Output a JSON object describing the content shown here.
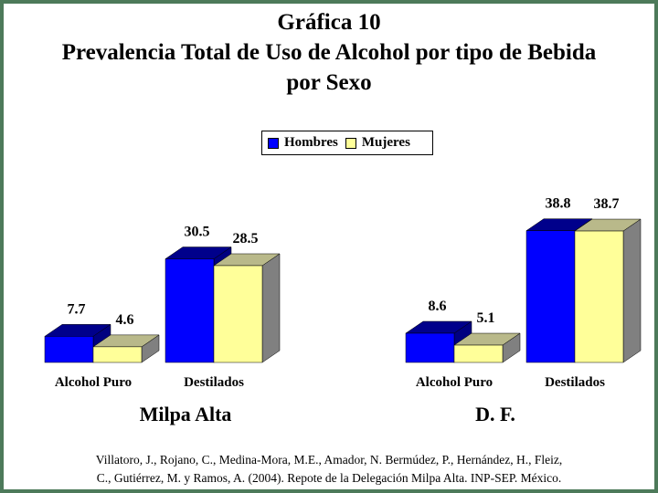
{
  "title_lines": [
    "Gráfica 10",
    "Prevalencia Total de Uso de Alcohol por tipo de Bebida",
    "por Sexo"
  ],
  "legend": [
    {
      "name": "Hombres",
      "color": "#0000ff"
    },
    {
      "name": "Mujeres",
      "color": "#ffff99"
    }
  ],
  "citation_lines": [
    "Villatoro, J., Rojano, C., Medina-Mora, M.E., Amador, N. Bermúdez, P., Hernández, H., Fleiz,",
    "C., Gutiérrez, M. y Ramos, A. (2004). Repote de la Delegación Milpa Alta. INP-SEP. México."
  ],
  "chart_data": [
    {
      "type": "bar",
      "title": "Milpa Alta",
      "categories": [
        "Alcohol Puro",
        "Destilados"
      ],
      "series": [
        {
          "name": "Hombres",
          "values": [
            7.7,
            30.5
          ]
        },
        {
          "name": "Mujeres",
          "values": [
            4.6,
            28.5
          ]
        }
      ],
      "value_labels": [
        [
          "7.7",
          "30.5"
        ],
        [
          "4.6",
          "28.5"
        ]
      ],
      "ylim": [
        0,
        40
      ],
      "grid": false,
      "legend": "top-center"
    },
    {
      "type": "bar",
      "title": "D. F.",
      "categories": [
        "Alcohol Puro",
        "Destilados"
      ],
      "series": [
        {
          "name": "Hombres",
          "values": [
            8.6,
            38.8
          ]
        },
        {
          "name": "Mujeres",
          "values": [
            5.1,
            38.7
          ]
        }
      ],
      "value_labels": [
        [
          "8.6",
          "38.8"
        ],
        [
          "5.1",
          "38.7"
        ]
      ],
      "ylim": [
        0,
        40
      ],
      "grid": false,
      "legend": "top-center"
    }
  ],
  "colors": {
    "hombres_front": "#0000ff",
    "hombres_top": "#00008b",
    "hombres_side": "#000080",
    "mujeres_front": "#ffff99",
    "mujeres_top": "#b9b98a",
    "mujeres_side": "#808080",
    "frame": "#4d7a5a"
  }
}
